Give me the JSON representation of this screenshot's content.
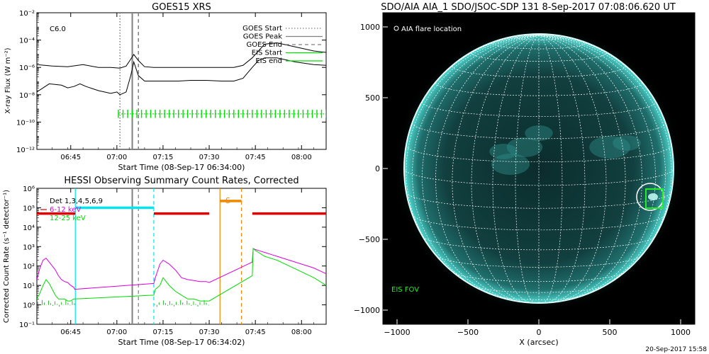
{
  "footer": {
    "timestamp": "20-Sep-2017 15:58"
  },
  "chart_data": [
    {
      "id": "goes",
      "type": "line",
      "title": "GOES15 XRS",
      "xlabel": "Start Time (08-Sep-17 06:34:00)",
      "ylabel": "X-ray Flux (W m⁻²)",
      "x_unit": "minutes since 06:34:00",
      "xlim": [
        0,
        94
      ],
      "ylim_log10": [
        -12,
        -2
      ],
      "yscale": "log",
      "x_ticks": [
        {
          "x": 11,
          "label": "06:45"
        },
        {
          "x": 26,
          "label": "07:00"
        },
        {
          "x": 41,
          "label": "07:15"
        },
        {
          "x": 56,
          "label": "07:30"
        },
        {
          "x": 71,
          "label": "07:45"
        },
        {
          "x": 86,
          "label": "08:00"
        }
      ],
      "y_ticks": [
        {
          "e": -2,
          "label": "10⁻²"
        },
        {
          "e": -4,
          "label": "10⁻⁴"
        },
        {
          "e": -6,
          "label": "10⁻⁶"
        },
        {
          "e": -8,
          "label": "10⁻⁸"
        },
        {
          "e": -10,
          "label": "10⁻¹⁰"
        },
        {
          "e": -12,
          "label": "10⁻¹²"
        }
      ],
      "flare_class": "C6.0",
      "markers": {
        "goes_start": 27,
        "goes_peak": 31,
        "goes_end": 33,
        "eis_start": 26.5,
        "eis_end": 94
      },
      "legend": [
        {
          "label": "GOES Start",
          "style": "dotted",
          "color": "#808080"
        },
        {
          "label": "GOES Peak",
          "style": "solid",
          "color": "#808080"
        },
        {
          "label": "GOES End",
          "style": "dashed",
          "color": "#808080"
        },
        {
          "label": "EIS Start",
          "style": "solid",
          "color": "#00dd00"
        },
        {
          "label": "EIS end",
          "style": "solid",
          "color": "#00dd00"
        }
      ],
      "series": [
        {
          "id": "long",
          "color": "#000000",
          "x": [
            0,
            5,
            10,
            15,
            20,
            24,
            27,
            29,
            30.5,
            31.5,
            33,
            35,
            38,
            42,
            46,
            50,
            55,
            60,
            64,
            67,
            70,
            72,
            74,
            78,
            84,
            90,
            94
          ],
          "log_y": [
            -5.8,
            -5.9,
            -5.95,
            -5.8,
            -6.0,
            -6.0,
            -6.05,
            -5.9,
            -5.4,
            -5.05,
            -5.5,
            -5.95,
            -6.0,
            -6.0,
            -6.0,
            -6.0,
            -6.0,
            -6.0,
            -6.0,
            -5.85,
            -5.3,
            -4.8,
            -4.3,
            -4.2,
            -4.5,
            -4.8,
            -4.9
          ]
        },
        {
          "id": "short",
          "color": "#000000",
          "x": [
            0,
            4,
            8,
            10,
            12,
            14,
            16,
            20,
            24,
            26,
            27,
            29,
            30.5,
            31.5,
            33,
            35,
            38,
            42,
            46,
            50,
            55,
            60,
            64,
            67,
            70,
            72,
            74,
            78,
            84,
            90,
            94
          ],
          "log_y": [
            -7.8,
            -7.2,
            -7.3,
            -7.5,
            -7.4,
            -7.2,
            -7.4,
            -7.7,
            -7.9,
            -7.8,
            -8.0,
            -7.8,
            -6.6,
            -5.6,
            -6.6,
            -7.0,
            -7.0,
            -7.0,
            -7.0,
            -6.95,
            -6.95,
            -7.0,
            -7.0,
            -6.8,
            -6.0,
            -5.5,
            -5.3,
            -5.3,
            -5.6,
            -5.8,
            -5.85
          ]
        }
      ],
      "eis_exposures": {
        "x_start": 26.5,
        "x_end": 94,
        "spacing": 1.5,
        "log_y_low": -9.7,
        "log_y_high": -9.1
      }
    },
    {
      "id": "hessi",
      "type": "line",
      "title": "HESSI Observing Summary Count Rates, Corrected",
      "xlabel": "Start Time (08-Sep-17 06:34:02)",
      "ylabel": "Corrected Count Rate (s⁻¹ detector⁻¹)",
      "x_unit": "minutes since 06:34:02",
      "xlim": [
        0,
        94
      ],
      "ylim_log10": [
        -1,
        6
      ],
      "yscale": "log",
      "x_ticks": [
        {
          "x": 11,
          "label": "06:45"
        },
        {
          "x": 26,
          "label": "07:00"
        },
        {
          "x": 41,
          "label": "07:15"
        },
        {
          "x": 56,
          "label": "07:30"
        },
        {
          "x": 71,
          "label": "07:45"
        },
        {
          "x": 86,
          "label": "08:00"
        }
      ],
      "y_ticks": [
        {
          "e": 6,
          "label": "10⁶"
        },
        {
          "e": 5,
          "label": "10⁵"
        },
        {
          "e": 4,
          "label": "10⁴"
        },
        {
          "e": 3,
          "label": "10³"
        },
        {
          "e": 2,
          "label": "10²"
        },
        {
          "e": 1,
          "label": "10¹"
        },
        {
          "e": 0,
          "label": "10⁰"
        },
        {
          "e": -1,
          "label": "10⁻¹"
        }
      ],
      "legend": [
        {
          "label": "Det 1,3,4,5,6,9",
          "color": "#000000"
        },
        {
          "label": "6-12 keV",
          "color": "#dd00dd"
        },
        {
          "label": "12-25 keV",
          "color": "#00dd00"
        }
      ],
      "s_label": "S",
      "bars": [
        {
          "color": "#00e5ee",
          "x0": 12.5,
          "x1": 38,
          "log_y": 5.0
        },
        {
          "color": "#dd0000",
          "x0": 0,
          "x1": 12.5,
          "log_y": 4.7
        },
        {
          "color": "#dd0000",
          "x0": 38,
          "x1": 56,
          "log_y": 4.7
        },
        {
          "color": "#ee8800",
          "x0": 59.5,
          "x1": 66.5,
          "log_y": 5.35
        },
        {
          "color": "#dd0000",
          "x0": 70,
          "x1": 94,
          "log_y": 4.7
        }
      ],
      "vlines": [
        {
          "x": 12.5,
          "color": "#00e5ee",
          "style": "solid"
        },
        {
          "x": 38,
          "color": "#00e5ee",
          "style": "dashed"
        },
        {
          "x": 59.5,
          "color": "#ee8800",
          "style": "solid"
        },
        {
          "x": 66.5,
          "color": "#ee8800",
          "style": "dashed"
        },
        {
          "x": 31,
          "color": "#808080",
          "style": "solid"
        },
        {
          "x": 33,
          "color": "#808080",
          "style": "dashed"
        }
      ],
      "series": [
        {
          "name": "6-12 keV",
          "color": "#dd00dd",
          "x": [
            0,
            1,
            2,
            3,
            4,
            5,
            6,
            7,
            8,
            9,
            10,
            11,
            12,
            12.3,
            38,
            38.5,
            40,
            41,
            42,
            43,
            45,
            47,
            49,
            51,
            53,
            55,
            56,
            70,
            70.3,
            71,
            72,
            74,
            78,
            82,
            86,
            90,
            94
          ],
          "log_y": [
            1.3,
            1.9,
            2.3,
            2.4,
            2.2,
            2.0,
            1.8,
            1.5,
            1.3,
            1.2,
            1.15,
            1.0,
            0.9,
            0.8,
            1.1,
            1.4,
            2.1,
            2.3,
            2.2,
            2.1,
            1.8,
            1.4,
            1.3,
            1.25,
            1.2,
            1.2,
            1.15,
            2.2,
            2.9,
            2.85,
            2.8,
            2.7,
            2.5,
            2.3,
            2.1,
            1.9,
            1.6
          ]
        },
        {
          "name": "12-25 keV",
          "color": "#00dd00",
          "x": [
            0,
            1,
            2,
            3,
            4,
            5,
            6,
            7,
            8,
            9,
            10,
            11,
            12,
            12.3,
            38,
            38.5,
            40,
            41,
            42,
            43,
            45,
            47,
            49,
            51,
            53,
            55,
            56,
            70,
            70.3,
            71,
            72,
            74,
            78,
            82,
            86,
            90,
            94
          ],
          "log_y": [
            0.3,
            0.6,
            1.0,
            1.3,
            1.1,
            0.8,
            0.5,
            0.3,
            0.3,
            0.3,
            0.2,
            0.2,
            0.3,
            0.3,
            0.5,
            0.8,
            1.0,
            1.4,
            1.2,
            1.0,
            0.7,
            0.5,
            0.3,
            0.3,
            0.2,
            0.2,
            0.2,
            1.5,
            2.9,
            2.8,
            2.7,
            2.5,
            2.3,
            2.0,
            1.7,
            1.4,
            1.0
          ]
        }
      ]
    },
    {
      "id": "aia",
      "type": "scatter",
      "title": "SDO/AIA AIA_1 SDO/JSOC-SDP 131  8-Sep-2017 07:08:06.620 UT",
      "xlabel": "X (arcsec)",
      "ylabel": "",
      "xlim": [
        -1100,
        1100
      ],
      "ylim": [
        -1100,
        1100
      ],
      "x_ticks": [
        {
          "v": -1000,
          "label": "−1000"
        },
        {
          "v": -500,
          "label": "−500"
        },
        {
          "v": 0,
          "label": "0"
        },
        {
          "v": 500,
          "label": "500"
        },
        {
          "v": 1000,
          "label": "1000"
        }
      ],
      "y_ticks": [
        {
          "v": 1000,
          "label": "1000"
        },
        {
          "v": 500,
          "label": "500"
        },
        {
          "v": 0,
          "label": "0"
        },
        {
          "v": -500,
          "label": "−500"
        },
        {
          "v": -1000,
          "label": "−1000"
        }
      ],
      "solar_radius_arcsec": 950,
      "grid_spacing_deg": 10,
      "flare_location": {
        "x": 785,
        "y": -200,
        "circle_radius": 95
      },
      "eis_fov": {
        "x0": 755,
        "y0": -280,
        "x1": 875,
        "y1": -145
      },
      "legend_flare": "AIA flare location",
      "legend_eis": "EIS FOV",
      "colors": {
        "disk": "#0f3b3b",
        "limb": "#6ff0e8",
        "grid": "#ffffff",
        "eis": "#22ee22",
        "background": "#000000"
      }
    }
  ]
}
